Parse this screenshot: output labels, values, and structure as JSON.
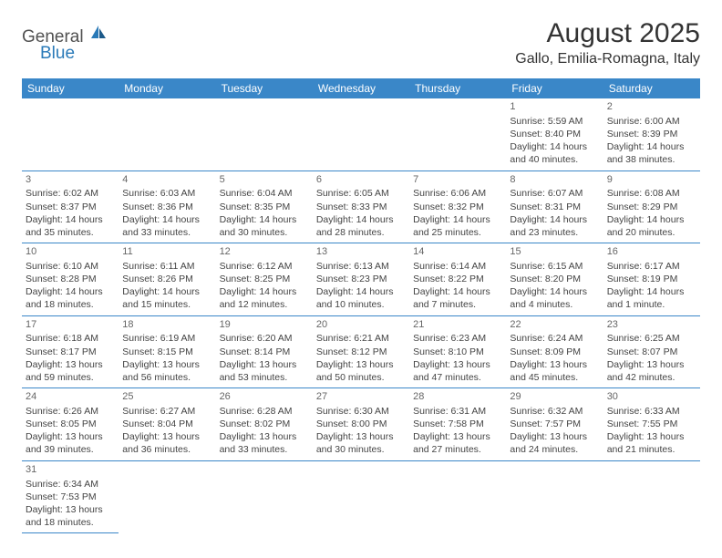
{
  "logo": {
    "general": "General",
    "blue": "Blue"
  },
  "title": "August 2025",
  "location": "Gallo, Emilia-Romagna, Italy",
  "colors": {
    "header_bg": "#3a87c8",
    "header_text": "#ffffff",
    "border": "#3a87c8",
    "logo_blue": "#2a7ab8",
    "logo_gray": "#515151",
    "cell_text": "#444444"
  },
  "weekdays": [
    "Sunday",
    "Monday",
    "Tuesday",
    "Wednesday",
    "Thursday",
    "Friday",
    "Saturday"
  ],
  "first_weekday_index": 5,
  "days": [
    {
      "n": 1,
      "sunrise": "5:59 AM",
      "sunset": "8:40 PM",
      "daylight": "14 hours and 40 minutes."
    },
    {
      "n": 2,
      "sunrise": "6:00 AM",
      "sunset": "8:39 PM",
      "daylight": "14 hours and 38 minutes."
    },
    {
      "n": 3,
      "sunrise": "6:02 AM",
      "sunset": "8:37 PM",
      "daylight": "14 hours and 35 minutes."
    },
    {
      "n": 4,
      "sunrise": "6:03 AM",
      "sunset": "8:36 PM",
      "daylight": "14 hours and 33 minutes."
    },
    {
      "n": 5,
      "sunrise": "6:04 AM",
      "sunset": "8:35 PM",
      "daylight": "14 hours and 30 minutes."
    },
    {
      "n": 6,
      "sunrise": "6:05 AM",
      "sunset": "8:33 PM",
      "daylight": "14 hours and 28 minutes."
    },
    {
      "n": 7,
      "sunrise": "6:06 AM",
      "sunset": "8:32 PM",
      "daylight": "14 hours and 25 minutes."
    },
    {
      "n": 8,
      "sunrise": "6:07 AM",
      "sunset": "8:31 PM",
      "daylight": "14 hours and 23 minutes."
    },
    {
      "n": 9,
      "sunrise": "6:08 AM",
      "sunset": "8:29 PM",
      "daylight": "14 hours and 20 minutes."
    },
    {
      "n": 10,
      "sunrise": "6:10 AM",
      "sunset": "8:28 PM",
      "daylight": "14 hours and 18 minutes."
    },
    {
      "n": 11,
      "sunrise": "6:11 AM",
      "sunset": "8:26 PM",
      "daylight": "14 hours and 15 minutes."
    },
    {
      "n": 12,
      "sunrise": "6:12 AM",
      "sunset": "8:25 PM",
      "daylight": "14 hours and 12 minutes."
    },
    {
      "n": 13,
      "sunrise": "6:13 AM",
      "sunset": "8:23 PM",
      "daylight": "14 hours and 10 minutes."
    },
    {
      "n": 14,
      "sunrise": "6:14 AM",
      "sunset": "8:22 PM",
      "daylight": "14 hours and 7 minutes."
    },
    {
      "n": 15,
      "sunrise": "6:15 AM",
      "sunset": "8:20 PM",
      "daylight": "14 hours and 4 minutes."
    },
    {
      "n": 16,
      "sunrise": "6:17 AM",
      "sunset": "8:19 PM",
      "daylight": "14 hours and 1 minute."
    },
    {
      "n": 17,
      "sunrise": "6:18 AM",
      "sunset": "8:17 PM",
      "daylight": "13 hours and 59 minutes."
    },
    {
      "n": 18,
      "sunrise": "6:19 AM",
      "sunset": "8:15 PM",
      "daylight": "13 hours and 56 minutes."
    },
    {
      "n": 19,
      "sunrise": "6:20 AM",
      "sunset": "8:14 PM",
      "daylight": "13 hours and 53 minutes."
    },
    {
      "n": 20,
      "sunrise": "6:21 AM",
      "sunset": "8:12 PM",
      "daylight": "13 hours and 50 minutes."
    },
    {
      "n": 21,
      "sunrise": "6:23 AM",
      "sunset": "8:10 PM",
      "daylight": "13 hours and 47 minutes."
    },
    {
      "n": 22,
      "sunrise": "6:24 AM",
      "sunset": "8:09 PM",
      "daylight": "13 hours and 45 minutes."
    },
    {
      "n": 23,
      "sunrise": "6:25 AM",
      "sunset": "8:07 PM",
      "daylight": "13 hours and 42 minutes."
    },
    {
      "n": 24,
      "sunrise": "6:26 AM",
      "sunset": "8:05 PM",
      "daylight": "13 hours and 39 minutes."
    },
    {
      "n": 25,
      "sunrise": "6:27 AM",
      "sunset": "8:04 PM",
      "daylight": "13 hours and 36 minutes."
    },
    {
      "n": 26,
      "sunrise": "6:28 AM",
      "sunset": "8:02 PM",
      "daylight": "13 hours and 33 minutes."
    },
    {
      "n": 27,
      "sunrise": "6:30 AM",
      "sunset": "8:00 PM",
      "daylight": "13 hours and 30 minutes."
    },
    {
      "n": 28,
      "sunrise": "6:31 AM",
      "sunset": "7:58 PM",
      "daylight": "13 hours and 27 minutes."
    },
    {
      "n": 29,
      "sunrise": "6:32 AM",
      "sunset": "7:57 PM",
      "daylight": "13 hours and 24 minutes."
    },
    {
      "n": 30,
      "sunrise": "6:33 AM",
      "sunset": "7:55 PM",
      "daylight": "13 hours and 21 minutes."
    },
    {
      "n": 31,
      "sunrise": "6:34 AM",
      "sunset": "7:53 PM",
      "daylight": "13 hours and 18 minutes."
    }
  ],
  "labels": {
    "sunrise": "Sunrise:",
    "sunset": "Sunset:",
    "daylight": "Daylight:"
  }
}
